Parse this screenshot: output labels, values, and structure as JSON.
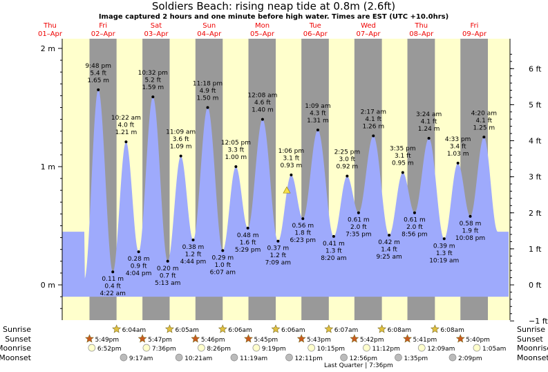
{
  "header": {
    "title": "Soldiers Beach: rising  neap tide at 0.8m (2.6ft)",
    "subtitle": "Image captured 2 hours and one minute before high water. Times are EST (UTC +10.0hrs)"
  },
  "chart_data": {
    "type": "area",
    "title": "Soldiers Beach: rising  neap tide at 0.8m (2.6ft)",
    "ylabel_left": "m",
    "ylabel_right": "ft",
    "ylim_m": [
      -0.32,
      2.05
    ],
    "left_ticks": [
      "0 m",
      "1 m",
      "2 m"
    ],
    "right_ticks": [
      "−1 ft",
      "0 ft",
      "1 ft",
      "2 ft",
      "3 ft",
      "4 ft",
      "5 ft",
      "6 ft"
    ],
    "days": [
      {
        "dow": "Thu",
        "date": "01–Apr"
      },
      {
        "dow": "Fri",
        "date": "02–Apr"
      },
      {
        "dow": "Sat",
        "date": "03–Apr"
      },
      {
        "dow": "Sun",
        "date": "04–Apr"
      },
      {
        "dow": "Mon",
        "date": "05–Apr"
      },
      {
        "dow": "Tue",
        "date": "06–Apr"
      },
      {
        "dow": "Wed",
        "date": "07–Apr"
      },
      {
        "dow": "Thu",
        "date": "08–Apr"
      },
      {
        "dow": "Fri",
        "date": "09–Apr"
      }
    ],
    "extremes": [
      {
        "day": 0,
        "hour": 21.8,
        "m": 1.65,
        "time": "9:48 pm",
        "ft": "5.4 ft",
        "mtxt": "1.65 m",
        "type": "high"
      },
      {
        "day": 1,
        "hour": 4.37,
        "m": 0.11,
        "time": "4:22 am",
        "ft": "0.4 ft",
        "mtxt": "0.11 m",
        "type": "low"
      },
      {
        "day": 1,
        "hour": 10.37,
        "m": 1.21,
        "time": "10:22 am",
        "ft": "4.0 ft",
        "mtxt": "1.21 m",
        "type": "high"
      },
      {
        "day": 1,
        "hour": 16.07,
        "m": 0.28,
        "time": "4:04 pm",
        "ft": "0.9 ft",
        "mtxt": "0.28 m",
        "type": "low"
      },
      {
        "day": 1,
        "hour": 22.53,
        "m": 1.59,
        "time": "10:32 pm",
        "ft": "5.2 ft",
        "mtxt": "1.59 m",
        "type": "high"
      },
      {
        "day": 2,
        "hour": 5.22,
        "m": 0.2,
        "time": "5:13 am",
        "ft": "0.7 ft",
        "mtxt": "0.20 m",
        "type": "low"
      },
      {
        "day": 2,
        "hour": 11.15,
        "m": 1.09,
        "time": "11:09 am",
        "ft": "3.6 ft",
        "mtxt": "1.09 m",
        "type": "high"
      },
      {
        "day": 2,
        "hour": 16.73,
        "m": 0.38,
        "time": "4:44 pm",
        "ft": "1.2 ft",
        "mtxt": "0.38 m",
        "type": "low"
      },
      {
        "day": 2,
        "hour": 23.3,
        "m": 1.5,
        "time": "11:18 pm",
        "ft": "4.9 ft",
        "mtxt": "1.50 m",
        "type": "high"
      },
      {
        "day": 3,
        "hour": 6.12,
        "m": 0.29,
        "time": "6:07 am",
        "ft": "1.0 ft",
        "mtxt": "0.29 m",
        "type": "low"
      },
      {
        "day": 3,
        "hour": 12.08,
        "m": 1.0,
        "time": "12:05 pm",
        "ft": "3.3 ft",
        "mtxt": "1.00 m",
        "type": "high"
      },
      {
        "day": 3,
        "hour": 17.48,
        "m": 0.48,
        "time": "5:29 pm",
        "ft": "1.6 ft",
        "mtxt": "0.48 m",
        "type": "low"
      },
      {
        "day": 4,
        "hour": 0.13,
        "m": 1.4,
        "time": "12:08 am",
        "ft": "4.6 ft",
        "mtxt": "1.40 m",
        "type": "high"
      },
      {
        "day": 4,
        "hour": 7.15,
        "m": 0.37,
        "time": "7:09 am",
        "ft": "1.2 ft",
        "mtxt": "0.37 m",
        "type": "low"
      },
      {
        "day": 4,
        "hour": 13.1,
        "m": 0.93,
        "time": "1:06 pm",
        "ft": "3.1 ft",
        "mtxt": "0.93 m",
        "type": "high"
      },
      {
        "day": 4,
        "hour": 18.38,
        "m": 0.56,
        "time": "6:23 pm",
        "ft": "1.8 ft",
        "mtxt": "0.56 m",
        "type": "low"
      },
      {
        "day": 5,
        "hour": 1.15,
        "m": 1.31,
        "time": "1:09 am",
        "ft": "4.3 ft",
        "mtxt": "1.31 m",
        "type": "high"
      },
      {
        "day": 5,
        "hour": 8.33,
        "m": 0.41,
        "time": "8:20 am",
        "ft": "1.3 ft",
        "mtxt": "0.41 m",
        "type": "low"
      },
      {
        "day": 5,
        "hour": 14.42,
        "m": 0.92,
        "time": "2:25 pm",
        "ft": "3.0 ft",
        "mtxt": "0.92 m",
        "type": "high"
      },
      {
        "day": 5,
        "hour": 19.58,
        "m": 0.61,
        "time": "7:35 pm",
        "ft": "2.0 ft",
        "mtxt": "0.61 m",
        "type": "low"
      },
      {
        "day": 6,
        "hour": 2.28,
        "m": 1.26,
        "time": "2:17 am",
        "ft": "4.1 ft",
        "mtxt": "1.26 m",
        "type": "high"
      },
      {
        "day": 6,
        "hour": 9.42,
        "m": 0.42,
        "time": "9:25 am",
        "ft": "1.4 ft",
        "mtxt": "0.42 m",
        "type": "low"
      },
      {
        "day": 6,
        "hour": 15.58,
        "m": 0.95,
        "time": "3:35 pm",
        "ft": "3.1 ft",
        "mtxt": "0.95 m",
        "type": "high"
      },
      {
        "day": 6,
        "hour": 20.93,
        "m": 0.61,
        "time": "8:56 pm",
        "ft": "2.0 ft",
        "mtxt": "0.61 m",
        "type": "low"
      },
      {
        "day": 7,
        "hour": 3.4,
        "m": 1.24,
        "time": "3:24 am",
        "ft": "4.1 ft",
        "mtxt": "1.24 m",
        "type": "high"
      },
      {
        "day": 7,
        "hour": 10.32,
        "m": 0.39,
        "time": "10:19 am",
        "ft": "1.3 ft",
        "mtxt": "0.39 m",
        "type": "low"
      },
      {
        "day": 7,
        "hour": 16.55,
        "m": 1.03,
        "time": "4:33 pm",
        "ft": "3.4 ft",
        "mtxt": "1.03 m",
        "type": "high"
      },
      {
        "day": 7,
        "hour": 22.13,
        "m": 0.58,
        "time": "10:08 pm",
        "ft": "1.9 ft",
        "mtxt": "0.58 m",
        "type": "low"
      },
      {
        "day": 8,
        "hour": 4.33,
        "m": 1.25,
        "time": "4:20 am",
        "ft": "4.1 ft",
        "mtxt": "1.25 m",
        "type": "high"
      }
    ],
    "current": {
      "day": 4,
      "hour": 11.1,
      "m": 0.8
    },
    "colors": {
      "day_bg": "#ffffcc",
      "night_bg": "#999999",
      "water": "#9eaafc",
      "label": "#000000",
      "day_text": "#ee0000"
    },
    "sunrise_label": "Sunrise",
    "sunset_label": "Sunset",
    "moonrise_label": "Moonrise",
    "moonset_label": "Moonset",
    "sunrise": [
      {
        "day": 1,
        "time": "6:04am"
      },
      {
        "day": 2,
        "time": "6:05am"
      },
      {
        "day": 3,
        "time": "6:06am"
      },
      {
        "day": 4,
        "time": "6:06am"
      },
      {
        "day": 5,
        "time": "6:07am"
      },
      {
        "day": 6,
        "time": "6:08am"
      },
      {
        "day": 7,
        "time": "6:08am"
      }
    ],
    "sunset": [
      {
        "day": 0,
        "time": "5:49pm"
      },
      {
        "day": 1,
        "time": "5:47pm"
      },
      {
        "day": 2,
        "time": "5:46pm"
      },
      {
        "day": 3,
        "time": "5:45pm"
      },
      {
        "day": 4,
        "time": "5:43pm"
      },
      {
        "day": 5,
        "time": "5:42pm"
      },
      {
        "day": 6,
        "time": "5:41pm"
      },
      {
        "day": 7,
        "time": "5:40pm"
      }
    ],
    "moonrise": [
      {
        "day": 0,
        "time": "6:52pm"
      },
      {
        "day": 1,
        "time": "7:36pm"
      },
      {
        "day": 2,
        "time": "8:26pm"
      },
      {
        "day": 3,
        "time": "9:19pm"
      },
      {
        "day": 4,
        "time": "10:15pm"
      },
      {
        "day": 5,
        "time": "11:12pm"
      },
      {
        "day": 7,
        "time": "12:09am"
      },
      {
        "day": 8,
        "time": "1:05am"
      }
    ],
    "moonset": [
      {
        "day": 1,
        "time": "9:17am"
      },
      {
        "day": 2,
        "time": "10:21am"
      },
      {
        "day": 3,
        "time": "11:19am"
      },
      {
        "day": 4,
        "time": "12:11pm"
      },
      {
        "day": 5,
        "time": "12:56pm"
      },
      {
        "day": 6,
        "time": "1:35pm"
      },
      {
        "day": 7,
        "time": "2:09pm"
      }
    ],
    "moon_phase": {
      "day": 5,
      "hour": 19.6,
      "text": "Last Quarter | 7:36pm"
    }
  }
}
